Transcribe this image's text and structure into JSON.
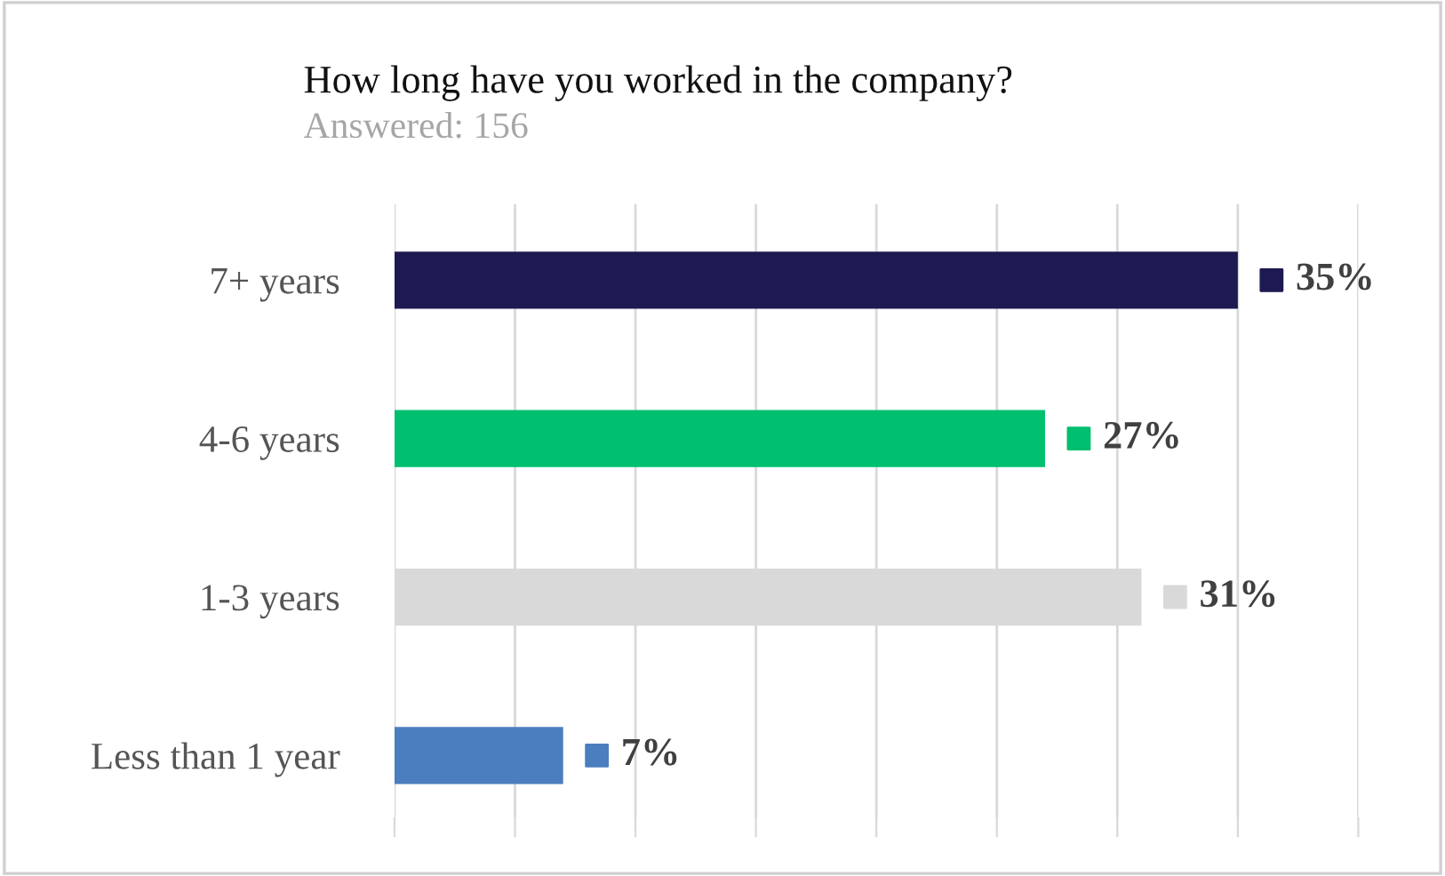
{
  "chart_data": {
    "type": "bar",
    "orientation": "horizontal",
    "title": "How long have you worked in the company?",
    "subtitle": "Answered: 156",
    "categories": [
      "7+ years",
      "4-6 years",
      "1-3 years",
      "Less than 1 year"
    ],
    "values": [
      35,
      27,
      31,
      7
    ],
    "colors": [
      "#1d1a52",
      "#00bf6f",
      "#d9d9d9",
      "#4a7ebf"
    ],
    "value_labels": [
      "35%",
      "27%",
      "31%",
      "7%"
    ],
    "xlim": [
      0,
      40
    ],
    "xticks": [
      {
        "value": 0,
        "label": null
      },
      {
        "value": 5,
        "label": null
      },
      {
        "value": 10,
        "label": null
      },
      {
        "value": 15,
        "label": null
      },
      {
        "value": 20,
        "label": null
      },
      {
        "value": 25,
        "label": null
      },
      {
        "value": 30,
        "label": null
      },
      {
        "value": 35,
        "label": null
      },
      {
        "value": 40,
        "label": null
      }
    ],
    "grid": "x",
    "legend": false,
    "tick_labels": "y"
  }
}
